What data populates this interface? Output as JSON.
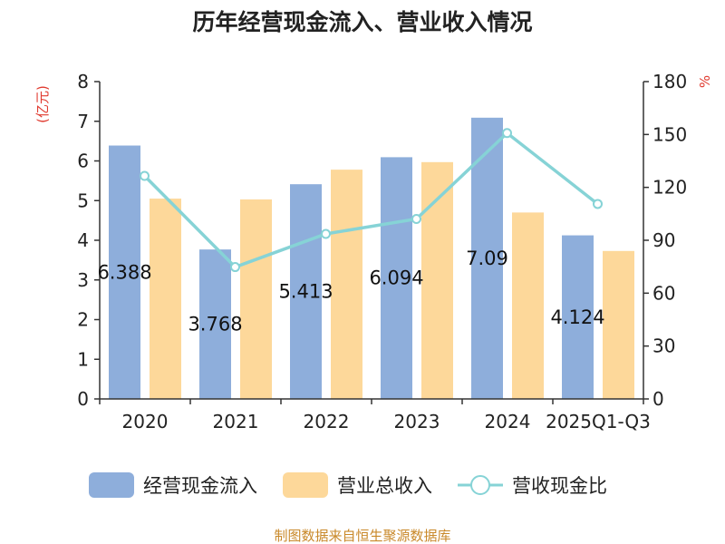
{
  "chart_data": {
    "type": "bar",
    "title": "历年经营现金流入、营业收入情况",
    "left_unit": "(亿元)",
    "right_unit": "%",
    "categories": [
      "2020",
      "2021",
      "2022",
      "2023",
      "2024",
      "2025Q1-Q3"
    ],
    "y_left": {
      "range": [
        0,
        8
      ],
      "ticks": [
        "0",
        "1",
        "2",
        "3",
        "4",
        "5",
        "6",
        "7",
        "8"
      ]
    },
    "y_right": {
      "range": [
        0,
        180
      ],
      "ticks": [
        "0",
        "30",
        "60",
        "90",
        "120",
        "150",
        "180"
      ]
    },
    "series": [
      {
        "name": "经营现金流入",
        "kind": "bar",
        "axis": "left",
        "color": "#8eaedb",
        "values": [
          6.388,
          3.768,
          5.413,
          6.094,
          7.09,
          4.124
        ],
        "labels": [
          "6.388",
          "3.768",
          "5.413",
          "6.094",
          "7.09",
          "4.124"
        ]
      },
      {
        "name": "营业总收入",
        "kind": "bar",
        "axis": "left",
        "color": "#fdd89a",
        "values": [
          5.05,
          5.03,
          5.78,
          5.97,
          4.7,
          3.73
        ]
      },
      {
        "name": "营收现金比",
        "kind": "line",
        "axis": "right",
        "color": "#86d3d6",
        "values": [
          126.5,
          74.8,
          93.6,
          102.1,
          150.8,
          110.6
        ]
      }
    ],
    "legend_position": "bottom",
    "grid": false
  },
  "source_note": "制图数据来自恒生聚源数据库"
}
